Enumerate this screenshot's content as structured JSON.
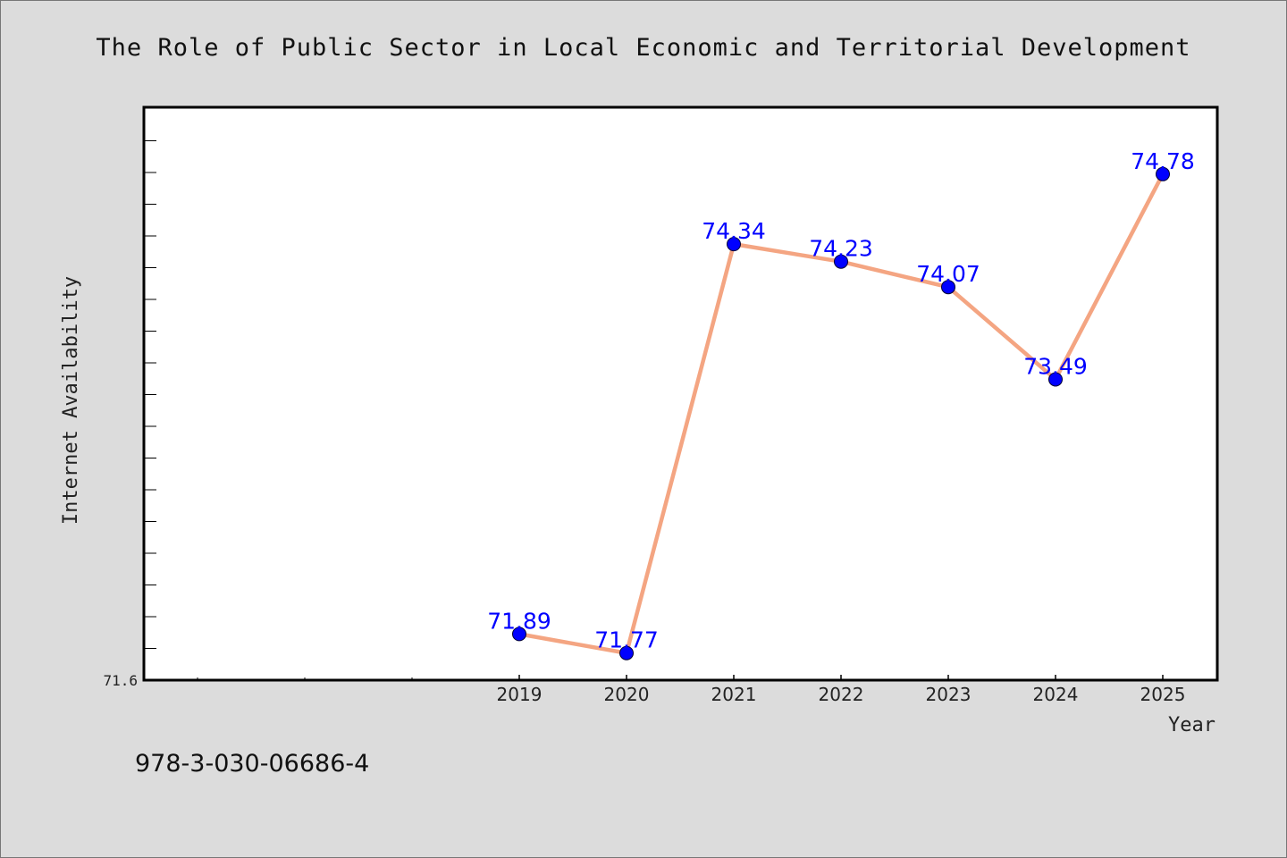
{
  "colors": {
    "background": "#dcdcdc",
    "plot_background": "#ffffff",
    "line": "#f4a582",
    "marker": "#0000ff",
    "data_label": "#0000ff"
  },
  "isbn": "978-3-030-06686-4",
  "chart_data": {
    "type": "line",
    "title": "The Role of Public Sector in Local Economic and Territorial Development",
    "xlabel": "Year",
    "ylabel": "Internet Availability",
    "y_min_label": "71.6",
    "ylim": [
      71.6,
      75.2
    ],
    "grid": false,
    "x": [
      "2019",
      "2020",
      "2021",
      "2022",
      "2023",
      "2024",
      "2025"
    ],
    "series": [
      {
        "values": [
          71.89,
          71.77,
          74.34,
          74.23,
          74.07,
          73.49,
          74.78
        ],
        "labels": [
          "71.89",
          "71.77",
          "74.34",
          "74.23",
          "74.07",
          "73.49",
          "74.78"
        ]
      }
    ]
  }
}
